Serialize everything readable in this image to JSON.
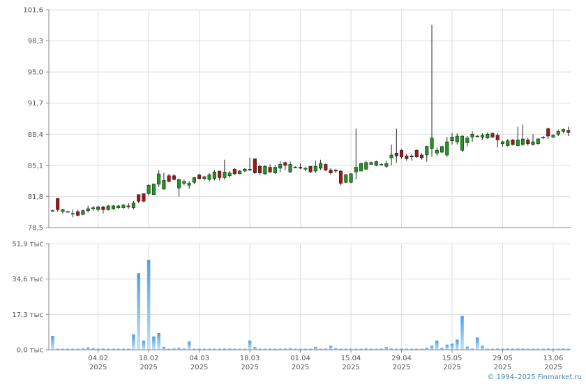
{
  "credit": "© 1994–2025 Finmarket.ru",
  "chart_data": [
    {
      "type": "candlestick",
      "y_ticks": [
        "101,6",
        "98,3",
        "95,0",
        "91,7",
        "88,4",
        "85,1",
        "81,8",
        "78,5"
      ],
      "y_tick_values": [
        101.6,
        98.3,
        95.0,
        91.7,
        88.4,
        85.1,
        81.8,
        78.5
      ],
      "ylim": [
        78.5,
        101.6
      ],
      "grid": true,
      "colors": {
        "up": "#1a9a1a",
        "down": "#a81414",
        "wick": "#222222",
        "grid": "#dddddd"
      },
      "candles": [
        {
          "o": 80.3,
          "h": 80.4,
          "l": 80.2,
          "c": 80.3
        },
        {
          "o": 81.6,
          "h": 81.6,
          "l": 80.2,
          "c": 80.4
        },
        {
          "o": 80.2,
          "h": 80.5,
          "l": 80.0,
          "c": 80.4
        },
        {
          "o": 80.2,
          "h": 80.3,
          "l": 80.1,
          "c": 80.2
        },
        {
          "o": 80.0,
          "h": 80.4,
          "l": 79.6,
          "c": 80.0
        },
        {
          "o": 80.2,
          "h": 80.4,
          "l": 79.7,
          "c": 79.8
        },
        {
          "o": 79.9,
          "h": 80.4,
          "l": 79.8,
          "c": 80.3
        },
        {
          "o": 80.3,
          "h": 80.8,
          "l": 80.1,
          "c": 80.5
        },
        {
          "o": 80.5,
          "h": 80.8,
          "l": 80.3,
          "c": 80.6
        },
        {
          "o": 80.4,
          "h": 80.8,
          "l": 80.2,
          "c": 80.7
        },
        {
          "o": 80.7,
          "h": 80.8,
          "l": 80.0,
          "c": 80.4
        },
        {
          "o": 80.4,
          "h": 80.9,
          "l": 80.3,
          "c": 80.8
        },
        {
          "o": 80.5,
          "h": 80.9,
          "l": 80.4,
          "c": 80.8
        },
        {
          "o": 80.6,
          "h": 80.9,
          "l": 80.5,
          "c": 80.8
        },
        {
          "o": 80.6,
          "h": 81.0,
          "l": 80.5,
          "c": 80.9
        },
        {
          "o": 80.8,
          "h": 81.1,
          "l": 80.5,
          "c": 80.7
        },
        {
          "o": 80.6,
          "h": 81.3,
          "l": 80.4,
          "c": 81.1
        },
        {
          "o": 82.0,
          "h": 82.0,
          "l": 81.1,
          "c": 81.3
        },
        {
          "o": 82.1,
          "h": 82.1,
          "l": 81.2,
          "c": 81.3
        },
        {
          "o": 82.1,
          "h": 83.1,
          "l": 81.9,
          "c": 83.0
        },
        {
          "o": 82.0,
          "h": 83.2,
          "l": 82.0,
          "c": 83.1
        },
        {
          "o": 83.1,
          "h": 84.6,
          "l": 82.8,
          "c": 84.2
        },
        {
          "o": 82.6,
          "h": 84.3,
          "l": 82.5,
          "c": 83.5
        },
        {
          "o": 84.0,
          "h": 84.2,
          "l": 83.3,
          "c": 83.4
        },
        {
          "o": 84.0,
          "h": 84.2,
          "l": 83.5,
          "c": 83.6
        },
        {
          "o": 82.7,
          "h": 83.7,
          "l": 81.8,
          "c": 83.6
        },
        {
          "o": 83.2,
          "h": 83.6,
          "l": 83.0,
          "c": 83.4
        },
        {
          "o": 83.0,
          "h": 83.4,
          "l": 82.6,
          "c": 83.2
        },
        {
          "o": 83.3,
          "h": 83.9,
          "l": 83.1,
          "c": 83.8
        },
        {
          "o": 84.1,
          "h": 84.2,
          "l": 83.6,
          "c": 83.7
        },
        {
          "o": 83.7,
          "h": 84.0,
          "l": 83.5,
          "c": 83.9
        },
        {
          "o": 83.6,
          "h": 84.3,
          "l": 83.4,
          "c": 84.1
        },
        {
          "o": 83.7,
          "h": 84.6,
          "l": 83.5,
          "c": 84.4
        },
        {
          "o": 84.5,
          "h": 84.5,
          "l": 83.5,
          "c": 83.8
        },
        {
          "o": 83.8,
          "h": 85.7,
          "l": 83.6,
          "c": 84.4
        },
        {
          "o": 84.0,
          "h": 84.5,
          "l": 83.8,
          "c": 84.3
        },
        {
          "o": 84.7,
          "h": 84.8,
          "l": 84.1,
          "c": 84.2
        },
        {
          "o": 84.2,
          "h": 84.6,
          "l": 84.2,
          "c": 84.5
        },
        {
          "o": 84.5,
          "h": 84.8,
          "l": 84.4,
          "c": 84.7
        },
        {
          "o": 84.6,
          "h": 85.9,
          "l": 84.5,
          "c": 84.7
        },
        {
          "o": 85.8,
          "h": 85.8,
          "l": 84.2,
          "c": 84.3
        },
        {
          "o": 85.0,
          "h": 85.2,
          "l": 84.1,
          "c": 84.3
        },
        {
          "o": 84.2,
          "h": 85.1,
          "l": 84.1,
          "c": 85.0
        },
        {
          "o": 84.9,
          "h": 85.2,
          "l": 84.3,
          "c": 84.4
        },
        {
          "o": 84.3,
          "h": 85.1,
          "l": 84.2,
          "c": 84.9
        },
        {
          "o": 84.8,
          "h": 85.5,
          "l": 84.4,
          "c": 85.2
        },
        {
          "o": 85.4,
          "h": 85.5,
          "l": 84.6,
          "c": 85.1
        },
        {
          "o": 84.4,
          "h": 85.5,
          "l": 84.3,
          "c": 85.2
        },
        {
          "o": 84.9,
          "h": 85.0,
          "l": 84.8,
          "c": 84.9
        },
        {
          "o": 84.9,
          "h": 85.3,
          "l": 84.7,
          "c": 84.8
        },
        {
          "o": 84.7,
          "h": 84.9,
          "l": 84.5,
          "c": 84.8
        },
        {
          "o": 85.0,
          "h": 85.0,
          "l": 84.3,
          "c": 84.4
        },
        {
          "o": 84.5,
          "h": 85.6,
          "l": 84.3,
          "c": 85.0
        },
        {
          "o": 84.8,
          "h": 85.7,
          "l": 84.6,
          "c": 85.3
        },
        {
          "o": 85.2,
          "h": 85.3,
          "l": 84.5,
          "c": 84.6
        },
        {
          "o": 84.6,
          "h": 84.8,
          "l": 84.1,
          "c": 84.3
        },
        {
          "o": 84.6,
          "h": 84.7,
          "l": 84.3,
          "c": 84.5
        },
        {
          "o": 84.5,
          "h": 84.6,
          "l": 83.0,
          "c": 83.2
        },
        {
          "o": 83.3,
          "h": 84.2,
          "l": 83.2,
          "c": 84.1
        },
        {
          "o": 83.3,
          "h": 84.3,
          "l": 83.2,
          "c": 84.2
        },
        {
          "o": 84.4,
          "h": 89.0,
          "l": 83.6,
          "c": 84.9
        },
        {
          "o": 84.5,
          "h": 85.4,
          "l": 84.5,
          "c": 85.3
        },
        {
          "o": 84.7,
          "h": 85.6,
          "l": 84.6,
          "c": 85.4
        },
        {
          "o": 85.2,
          "h": 85.5,
          "l": 85.2,
          "c": 85.4
        },
        {
          "o": 85.1,
          "h": 85.6,
          "l": 85.0,
          "c": 85.5
        },
        {
          "o": 85.2,
          "h": 85.3,
          "l": 85.1,
          "c": 85.2
        },
        {
          "o": 85.0,
          "h": 85.6,
          "l": 84.8,
          "c": 85.3
        },
        {
          "o": 85.9,
          "h": 87.3,
          "l": 85.1,
          "c": 86.2
        },
        {
          "o": 86.4,
          "h": 89.0,
          "l": 85.4,
          "c": 86.1
        },
        {
          "o": 86.7,
          "h": 86.8,
          "l": 85.8,
          "c": 86.0
        },
        {
          "o": 86.1,
          "h": 86.3,
          "l": 85.6,
          "c": 85.8
        },
        {
          "o": 86.1,
          "h": 86.3,
          "l": 85.6,
          "c": 86.0
        },
        {
          "o": 86.7,
          "h": 86.8,
          "l": 85.9,
          "c": 86.0
        },
        {
          "o": 86.2,
          "h": 86.4,
          "l": 85.7,
          "c": 85.9
        },
        {
          "o": 86.2,
          "h": 87.2,
          "l": 85.5,
          "c": 87.1
        },
        {
          "o": 86.9,
          "h": 100.0,
          "l": 86.0,
          "c": 88.0
        },
        {
          "o": 86.4,
          "h": 87.0,
          "l": 86.1,
          "c": 86.7
        },
        {
          "o": 86.5,
          "h": 87.2,
          "l": 86.4,
          "c": 87.1
        },
        {
          "o": 86.2,
          "h": 88.1,
          "l": 86.0,
          "c": 87.6
        },
        {
          "o": 87.7,
          "h": 88.5,
          "l": 87.3,
          "c": 88.1
        },
        {
          "o": 87.6,
          "h": 88.5,
          "l": 87.3,
          "c": 88.2
        },
        {
          "o": 86.7,
          "h": 88.3,
          "l": 86.5,
          "c": 88.2
        },
        {
          "o": 87.5,
          "h": 88.2,
          "l": 87.1,
          "c": 88.0
        },
        {
          "o": 88.1,
          "h": 88.7,
          "l": 87.6,
          "c": 88.4
        },
        {
          "o": 88.2,
          "h": 88.3,
          "l": 88.1,
          "c": 88.2
        },
        {
          "o": 88.1,
          "h": 88.5,
          "l": 87.8,
          "c": 88.3
        },
        {
          "o": 88.0,
          "h": 88.6,
          "l": 87.9,
          "c": 88.4
        },
        {
          "o": 88.5,
          "h": 88.6,
          "l": 88.0,
          "c": 88.1
        },
        {
          "o": 88.3,
          "h": 88.5,
          "l": 87.0,
          "c": 87.8
        },
        {
          "o": 87.4,
          "h": 87.7,
          "l": 87.1,
          "c": 87.6
        },
        {
          "o": 87.2,
          "h": 87.9,
          "l": 87.1,
          "c": 87.7
        },
        {
          "o": 87.8,
          "h": 87.9,
          "l": 87.2,
          "c": 87.3
        },
        {
          "o": 87.2,
          "h": 89.2,
          "l": 87.1,
          "c": 87.8
        },
        {
          "o": 87.3,
          "h": 89.4,
          "l": 87.2,
          "c": 87.9
        },
        {
          "o": 87.8,
          "h": 88.0,
          "l": 87.2,
          "c": 87.4
        },
        {
          "o": 87.3,
          "h": 88.4,
          "l": 87.2,
          "c": 87.6
        },
        {
          "o": 87.4,
          "h": 88.0,
          "l": 87.3,
          "c": 87.9
        },
        {
          "o": 88.1,
          "h": 88.2,
          "l": 87.9,
          "c": 88.1
        },
        {
          "o": 89.0,
          "h": 89.1,
          "l": 87.9,
          "c": 88.2
        },
        {
          "o": 88.1,
          "h": 88.4,
          "l": 88.0,
          "c": 88.3
        },
        {
          "o": 88.4,
          "h": 88.9,
          "l": 88.2,
          "c": 88.7
        },
        {
          "o": 88.7,
          "h": 89.0,
          "l": 88.5,
          "c": 88.9
        },
        {
          "o": 88.8,
          "h": 89.2,
          "l": 88.2,
          "c": 88.6
        }
      ]
    },
    {
      "type": "bar",
      "series_name": "volume",
      "y_ticks": [
        "51,9 тыс",
        "34,6 тыс",
        "17,3 тыс",
        "0,0 тыс"
      ],
      "y_tick_values": [
        51.9,
        34.6,
        17.3,
        0.0
      ],
      "ylim": [
        0,
        51.9
      ],
      "units": "тыс",
      "grid": true,
      "colors": {
        "bar_top": "#4a9fe6",
        "bar_bottom": "#c5e1fa",
        "grid": "#dddddd"
      },
      "values": [
        6.8,
        0.5,
        0.5,
        0.5,
        0.5,
        0.5,
        0.6,
        1.2,
        0.8,
        0.5,
        0.6,
        0.5,
        0.5,
        0.5,
        0.5,
        0.5,
        7.5,
        37.5,
        4.5,
        44.0,
        6.5,
        8.2,
        1.4,
        0.5,
        0.6,
        1.0,
        0.6,
        4.0,
        0.5,
        0.5,
        0.5,
        0.5,
        0.5,
        0.5,
        0.6,
        0.6,
        0.5,
        0.5,
        0.5,
        4.5,
        1.3,
        0.5,
        0.5,
        0.5,
        0.5,
        0.5,
        0.6,
        0.8,
        0.5,
        0.5,
        0.5,
        0.5,
        1.4,
        0.5,
        0.6,
        2.0,
        0.8,
        0.5,
        0.5,
        0.5,
        0.5,
        0.5,
        0.6,
        0.5,
        0.5,
        0.6,
        1.3,
        0.6,
        0.5,
        0.6,
        0.5,
        0.5,
        0.5,
        0.5,
        1.0,
        2.0,
        4.5,
        1.0,
        2.5,
        3.0,
        5.0,
        16.5,
        1.5,
        0.6,
        6.0,
        2.0,
        0.5,
        0.5,
        0.6,
        0.5,
        0.6,
        0.5,
        0.6,
        0.6,
        0.5,
        0.5,
        0.5,
        0.5,
        0.6,
        0.5,
        0.5,
        0.6,
        0.5
      ]
    }
  ],
  "x_ticks": [
    {
      "label": "04.02",
      "year": "2025",
      "index": 9
    },
    {
      "label": "18.02",
      "year": "2025",
      "index": 19
    },
    {
      "label": "04.03",
      "year": "2025",
      "index": 29
    },
    {
      "label": "18.03",
      "year": "2025",
      "index": 39
    },
    {
      "label": "01.04",
      "year": "2025",
      "index": 49
    },
    {
      "label": "15.04",
      "year": "2025",
      "index": 59
    },
    {
      "label": "29.04",
      "year": "2025",
      "index": 69
    },
    {
      "label": "15.05",
      "year": "2025",
      "index": 79
    },
    {
      "label": "29.05",
      "year": "2025",
      "index": 89
    },
    {
      "label": "13.06",
      "year": "2025",
      "index": 99
    }
  ]
}
